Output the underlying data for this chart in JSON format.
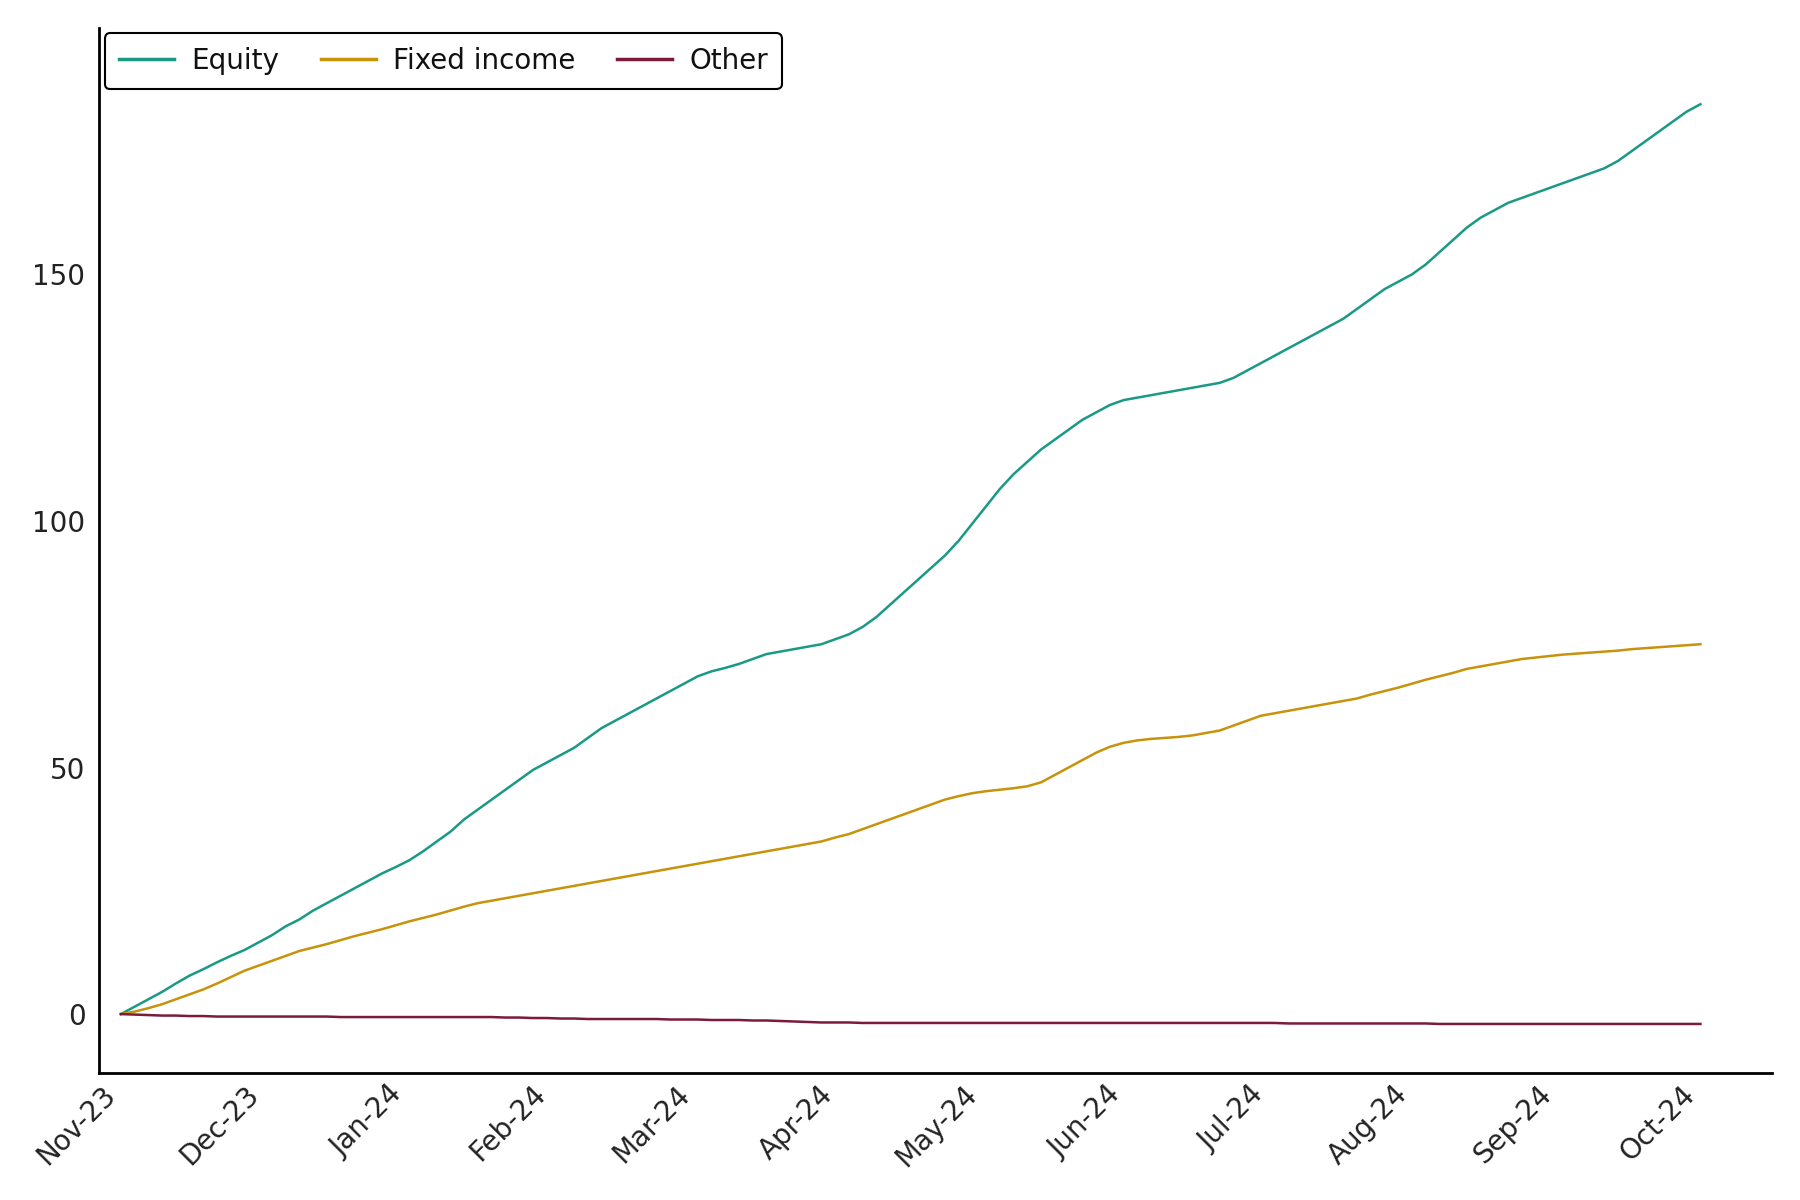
{
  "background_color": "#ffffff",
  "line_colors": {
    "equity": "#1a9985",
    "fixed_income": "#c8930a",
    "other": "#7b1a3a"
  },
  "legend_labels": [
    "Equity",
    "Fixed income",
    "Other"
  ],
  "x_tick_labels": [
    "Nov-23",
    "Dec-23",
    "Jan-24",
    "Feb-24",
    "Mar-24",
    "Apr-24",
    "May-24",
    "Jun-24",
    "Jul-24",
    "Aug-24",
    "Sep-24",
    "Oct-24"
  ],
  "ylim": [
    -12,
    200
  ],
  "yticks": [
    0,
    50,
    100,
    150
  ],
  "equity": [
    0.0,
    1.5,
    3.0,
    4.5,
    6.2,
    7.8,
    9.1,
    10.5,
    11.8,
    13.0,
    14.5,
    16.0,
    17.8,
    19.2,
    21.0,
    22.5,
    24.0,
    25.5,
    27.0,
    28.5,
    29.8,
    31.2,
    33.0,
    35.0,
    37.0,
    39.5,
    41.5,
    43.5,
    45.5,
    47.5,
    49.5,
    51.0,
    52.5,
    54.0,
    56.0,
    58.0,
    59.5,
    61.0,
    62.5,
    64.0,
    65.5,
    67.0,
    68.5,
    69.5,
    70.2,
    71.0,
    72.0,
    73.0,
    73.5,
    74.0,
    74.5,
    75.0,
    76.0,
    77.0,
    78.5,
    80.5,
    83.0,
    85.5,
    88.0,
    90.5,
    93.0,
    96.0,
    99.5,
    103.0,
    106.5,
    109.5,
    112.0,
    114.5,
    116.5,
    118.5,
    120.5,
    122.0,
    123.5,
    124.5,
    125.0,
    125.5,
    126.0,
    126.5,
    127.0,
    127.5,
    128.0,
    129.0,
    130.5,
    132.0,
    133.5,
    135.0,
    136.5,
    138.0,
    139.5,
    141.0,
    143.0,
    145.0,
    147.0,
    148.5,
    150.0,
    152.0,
    154.5,
    157.0,
    159.5,
    161.5,
    163.0,
    164.5,
    165.5,
    166.5,
    167.5,
    168.5,
    169.5,
    170.5,
    171.5,
    173.0,
    175.0,
    177.0,
    179.0,
    181.0,
    183.0,
    184.5
  ],
  "fixed_income": [
    0.0,
    0.5,
    1.2,
    2.0,
    3.0,
    4.0,
    5.0,
    6.2,
    7.5,
    8.8,
    9.8,
    10.8,
    11.8,
    12.8,
    13.5,
    14.2,
    15.0,
    15.8,
    16.5,
    17.2,
    18.0,
    18.8,
    19.5,
    20.2,
    21.0,
    21.8,
    22.5,
    23.0,
    23.5,
    24.0,
    24.5,
    25.0,
    25.5,
    26.0,
    26.5,
    27.0,
    27.5,
    28.0,
    28.5,
    29.0,
    29.5,
    30.0,
    30.5,
    31.0,
    31.5,
    32.0,
    32.5,
    33.0,
    33.5,
    34.0,
    34.5,
    35.0,
    35.8,
    36.5,
    37.5,
    38.5,
    39.5,
    40.5,
    41.5,
    42.5,
    43.5,
    44.2,
    44.8,
    45.2,
    45.5,
    45.8,
    46.2,
    47.0,
    48.5,
    50.0,
    51.5,
    53.0,
    54.2,
    55.0,
    55.5,
    55.8,
    56.0,
    56.2,
    56.5,
    57.0,
    57.5,
    58.5,
    59.5,
    60.5,
    61.0,
    61.5,
    62.0,
    62.5,
    63.0,
    63.5,
    64.0,
    64.8,
    65.5,
    66.2,
    67.0,
    67.8,
    68.5,
    69.2,
    70.0,
    70.5,
    71.0,
    71.5,
    72.0,
    72.3,
    72.6,
    72.9,
    73.1,
    73.3,
    73.5,
    73.7,
    74.0,
    74.2,
    74.4,
    74.6,
    74.8,
    75.0
  ],
  "other": [
    0.0,
    -0.1,
    -0.2,
    -0.3,
    -0.3,
    -0.4,
    -0.4,
    -0.5,
    -0.5,
    -0.5,
    -0.5,
    -0.5,
    -0.5,
    -0.5,
    -0.5,
    -0.5,
    -0.6,
    -0.6,
    -0.6,
    -0.6,
    -0.6,
    -0.6,
    -0.6,
    -0.6,
    -0.6,
    -0.6,
    -0.6,
    -0.6,
    -0.7,
    -0.7,
    -0.8,
    -0.8,
    -0.9,
    -0.9,
    -1.0,
    -1.0,
    -1.0,
    -1.0,
    -1.0,
    -1.0,
    -1.1,
    -1.1,
    -1.1,
    -1.2,
    -1.2,
    -1.2,
    -1.3,
    -1.3,
    -1.4,
    -1.5,
    -1.6,
    -1.7,
    -1.7,
    -1.7,
    -1.8,
    -1.8,
    -1.8,
    -1.8,
    -1.8,
    -1.8,
    -1.8,
    -1.8,
    -1.8,
    -1.8,
    -1.8,
    -1.8,
    -1.8,
    -1.8,
    -1.8,
    -1.8,
    -1.8,
    -1.8,
    -1.8,
    -1.8,
    -1.8,
    -1.8,
    -1.8,
    -1.8,
    -1.8,
    -1.8,
    -1.8,
    -1.8,
    -1.8,
    -1.8,
    -1.8,
    -1.9,
    -1.9,
    -1.9,
    -1.9,
    -1.9,
    -1.9,
    -1.9,
    -1.9,
    -1.9,
    -1.9,
    -1.9,
    -2.0,
    -2.0,
    -2.0,
    -2.0,
    -2.0,
    -2.0,
    -2.0,
    -2.0,
    -2.0,
    -2.0,
    -2.0,
    -2.0,
    -2.0,
    -2.0,
    -2.0,
    -2.0,
    -2.0,
    -2.0,
    -2.0,
    -2.0
  ],
  "tick_fontsize": 20,
  "legend_fontsize": 20,
  "line_width": 1.8
}
